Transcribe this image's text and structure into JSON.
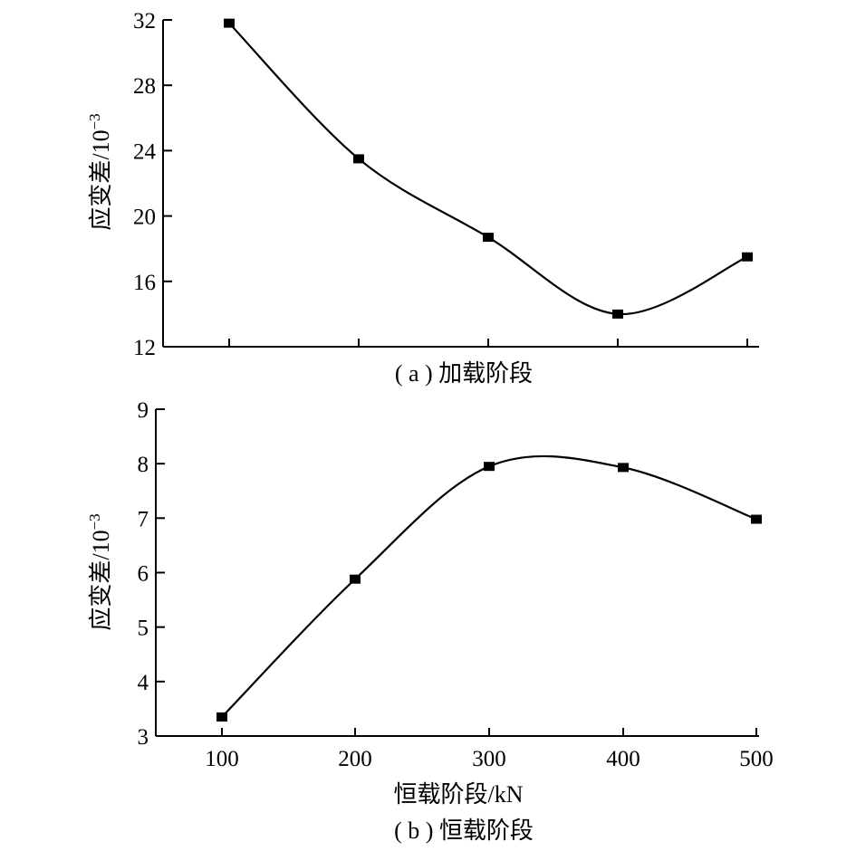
{
  "chart_data": [
    {
      "type": "line",
      "caption": "( a ) 加载阶段",
      "ylabel": "应变差/10",
      "ylabel_exponent": "−3",
      "xlabel": "",
      "x": [
        100,
        200,
        300,
        400,
        500
      ],
      "show_x_tick_labels": false,
      "ylim": [
        12,
        32
      ],
      "yticks": [
        "12",
        "16",
        "20",
        "24",
        "28",
        "32"
      ],
      "series": [
        {
          "values": [
            31.8,
            23.5,
            18.7,
            14.0,
            17.5
          ]
        }
      ],
      "smooth": true,
      "marker": "square",
      "grid": false
    },
    {
      "type": "line",
      "caption": "( b ) 恒载阶段",
      "ylabel": "应变差/10",
      "ylabel_exponent": "−3",
      "xlabel": "恒载阶段/kN",
      "x": [
        100,
        200,
        300,
        400,
        500
      ],
      "xticks": [
        "100",
        "200",
        "300",
        "400",
        "500"
      ],
      "show_x_tick_labels": true,
      "ylim": [
        3,
        9
      ],
      "yticks": [
        "3",
        "4",
        "5",
        "6",
        "7",
        "8",
        "9"
      ],
      "series": [
        {
          "values": [
            3.35,
            5.88,
            7.95,
            7.93,
            6.98
          ]
        }
      ],
      "smooth": true,
      "marker": "square",
      "grid": false
    }
  ]
}
